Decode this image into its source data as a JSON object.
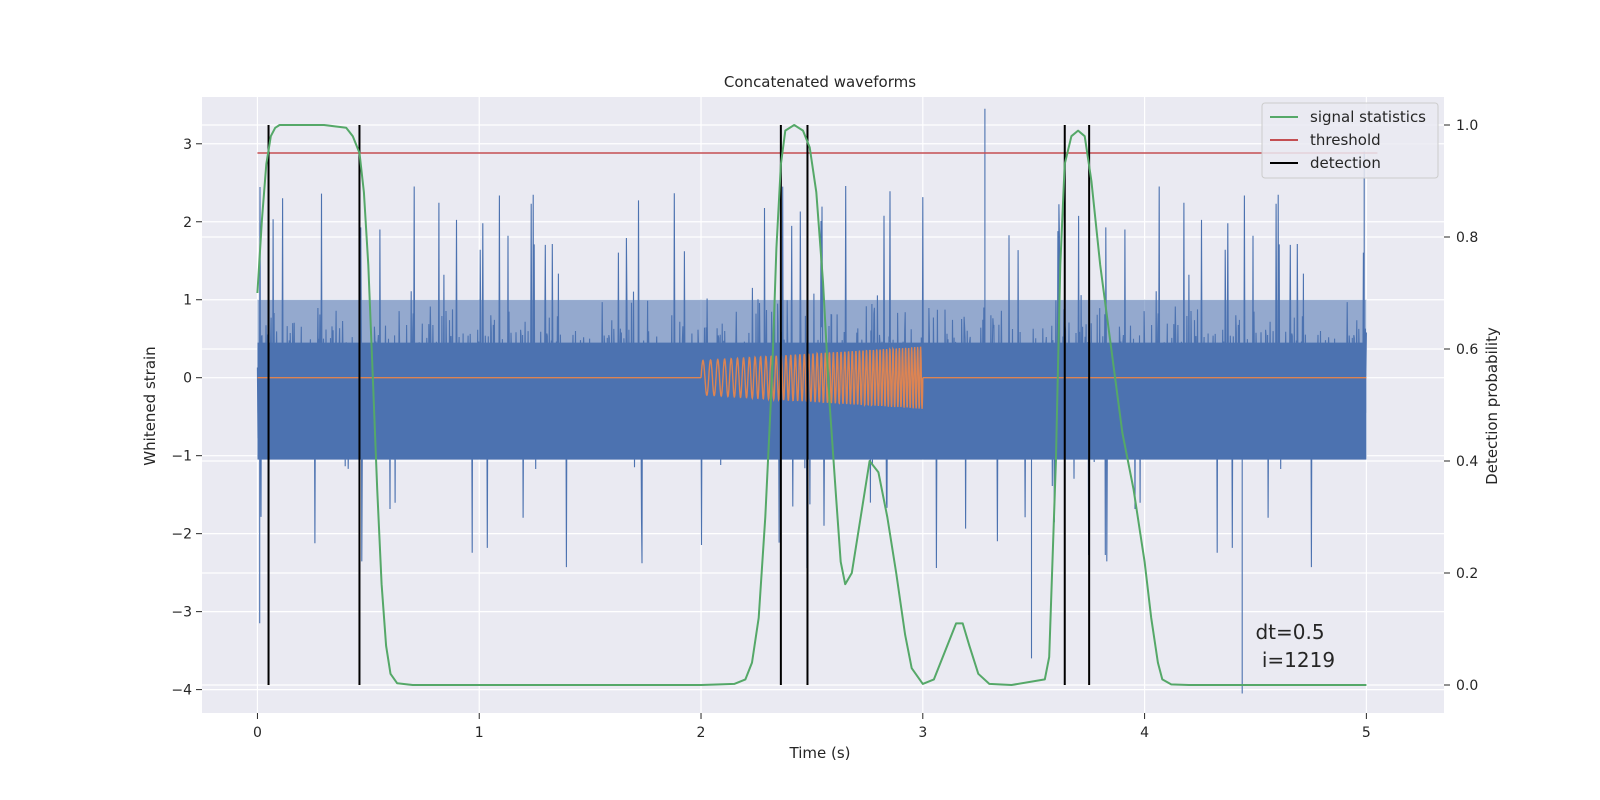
{
  "chart_data": {
    "type": "line",
    "title": "Concatenated waveforms",
    "xlabel": "Time (s)",
    "ylabel": "Whitened strain",
    "y2label": "Detection probability",
    "xlim": [
      -0.25,
      5.35
    ],
    "ylim": [
      -4.3,
      3.6
    ],
    "y2lim": [
      -0.05,
      1.05
    ],
    "x_ticks": [
      0,
      1,
      2,
      3,
      4,
      5
    ],
    "y_ticks": [
      -4,
      -3,
      -2,
      -1,
      0,
      1,
      2,
      3
    ],
    "y2_ticks": [
      0.0,
      0.2,
      0.4,
      0.6,
      0.8,
      1.0
    ],
    "y2_tick_labels": [
      "0.0",
      "0.2",
      "0.4",
      "0.6",
      "0.8",
      "1.0"
    ],
    "grid": true,
    "legend_position": "top-right",
    "annotation": {
      "lines": [
        "dt=0.5",
        " i=1219"
      ],
      "x": 4.5,
      "y": -3.35
    },
    "colors": {
      "strain": "#4c72b0",
      "template": "#dd8452",
      "signal": "#55a868",
      "threshold": "#c44e52",
      "detection": "#000000",
      "plot_bg": "#eaeaf2",
      "grid": "#ffffff"
    },
    "strain": {
      "x_range": [
        0,
        5
      ],
      "typical_envelope": [
        -2.0,
        2.2
      ],
      "notable_spikes": [
        {
          "x": 0.01,
          "y": -3.15
        },
        {
          "x": 3.28,
          "y": 3.45
        },
        {
          "x": 3.49,
          "y": -3.6
        },
        {
          "x": 4.44,
          "y": -4.05
        },
        {
          "x": 4.99,
          "y": 2.9
        }
      ]
    },
    "template": {
      "x_range": [
        0,
        5
      ],
      "chirp_start": 2.0,
      "chirp_end": 3.0,
      "amplitude_start": 0.22,
      "amplitude_end": 0.4
    },
    "series": [
      {
        "name": "signal statistics",
        "axis": "right",
        "x": [
          0.0,
          0.02,
          0.04,
          0.06,
          0.08,
          0.1,
          0.15,
          0.3,
          0.4,
          0.43,
          0.46,
          0.48,
          0.5,
          0.52,
          0.54,
          0.56,
          0.58,
          0.6,
          0.63,
          0.7,
          1.0,
          1.5,
          2.0,
          2.15,
          2.2,
          2.23,
          2.26,
          2.29,
          2.32,
          2.34,
          2.36,
          2.38,
          2.42,
          2.46,
          2.49,
          2.52,
          2.55,
          2.58,
          2.61,
          2.63,
          2.65,
          2.68,
          2.72,
          2.76,
          2.8,
          2.84,
          2.88,
          2.92,
          2.95,
          3.0,
          3.05,
          3.1,
          3.15,
          3.18,
          3.21,
          3.25,
          3.3,
          3.4,
          3.55,
          3.57,
          3.6,
          3.62,
          3.64,
          3.67,
          3.7,
          3.73,
          3.76,
          3.8,
          3.85,
          3.9,
          3.95,
          4.0,
          4.03,
          4.06,
          4.08,
          4.12,
          4.2,
          4.5,
          5.0
        ],
        "values": [
          0.7,
          0.83,
          0.93,
          0.98,
          0.995,
          1.0,
          1.0,
          1.0,
          0.995,
          0.98,
          0.95,
          0.88,
          0.75,
          0.55,
          0.35,
          0.18,
          0.07,
          0.02,
          0.003,
          0.0,
          0.0,
          0.0,
          0.0,
          0.002,
          0.01,
          0.04,
          0.12,
          0.3,
          0.55,
          0.78,
          0.93,
          0.99,
          1.0,
          0.99,
          0.96,
          0.88,
          0.72,
          0.5,
          0.33,
          0.22,
          0.18,
          0.2,
          0.3,
          0.4,
          0.38,
          0.3,
          0.2,
          0.09,
          0.03,
          0.002,
          0.01,
          0.06,
          0.11,
          0.11,
          0.07,
          0.02,
          0.002,
          0.0,
          0.01,
          0.05,
          0.4,
          0.75,
          0.93,
          0.98,
          0.99,
          0.98,
          0.9,
          0.75,
          0.6,
          0.45,
          0.35,
          0.22,
          0.12,
          0.04,
          0.01,
          0.001,
          0.0,
          0.0,
          0.0
        ]
      },
      {
        "name": "threshold",
        "axis": "right",
        "x": [
          0,
          5.05
        ],
        "values": [
          0.95,
          0.95
        ]
      },
      {
        "name": "detection",
        "axis": "right",
        "x": [
          0.05,
          0.46,
          2.36,
          2.48,
          3.64,
          3.75
        ],
        "y_from": 0.0,
        "y_to": 1.0
      }
    ]
  }
}
